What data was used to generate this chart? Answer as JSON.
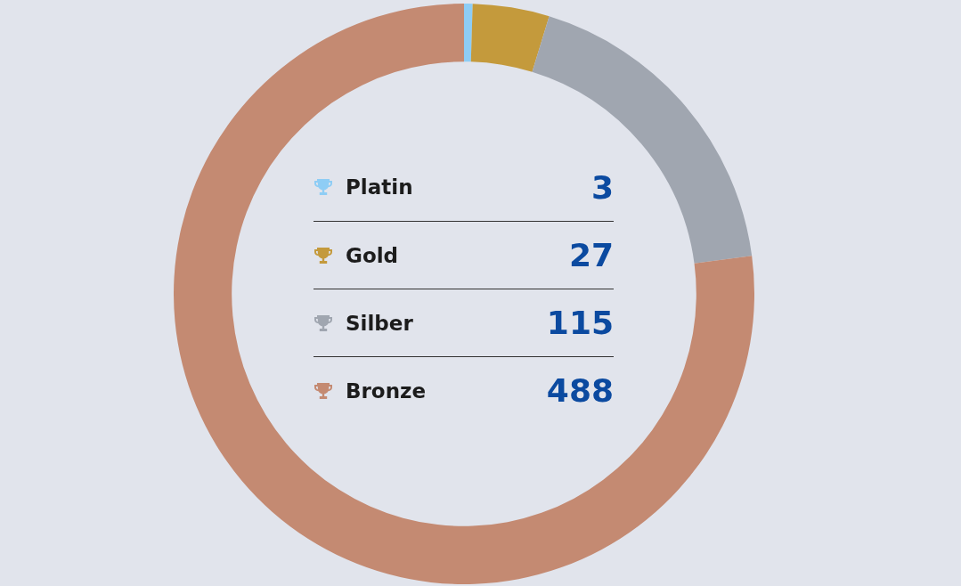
{
  "chart_data": {
    "type": "donut",
    "categories": [
      "Platin",
      "Gold",
      "Silber",
      "Bronze"
    ],
    "values": [
      3,
      27,
      115,
      488
    ],
    "colors": [
      "#8ecdf5",
      "#c49a3c",
      "#a0a6b0",
      "#c48a72"
    ],
    "legend": "center",
    "data_labels": true
  }
}
